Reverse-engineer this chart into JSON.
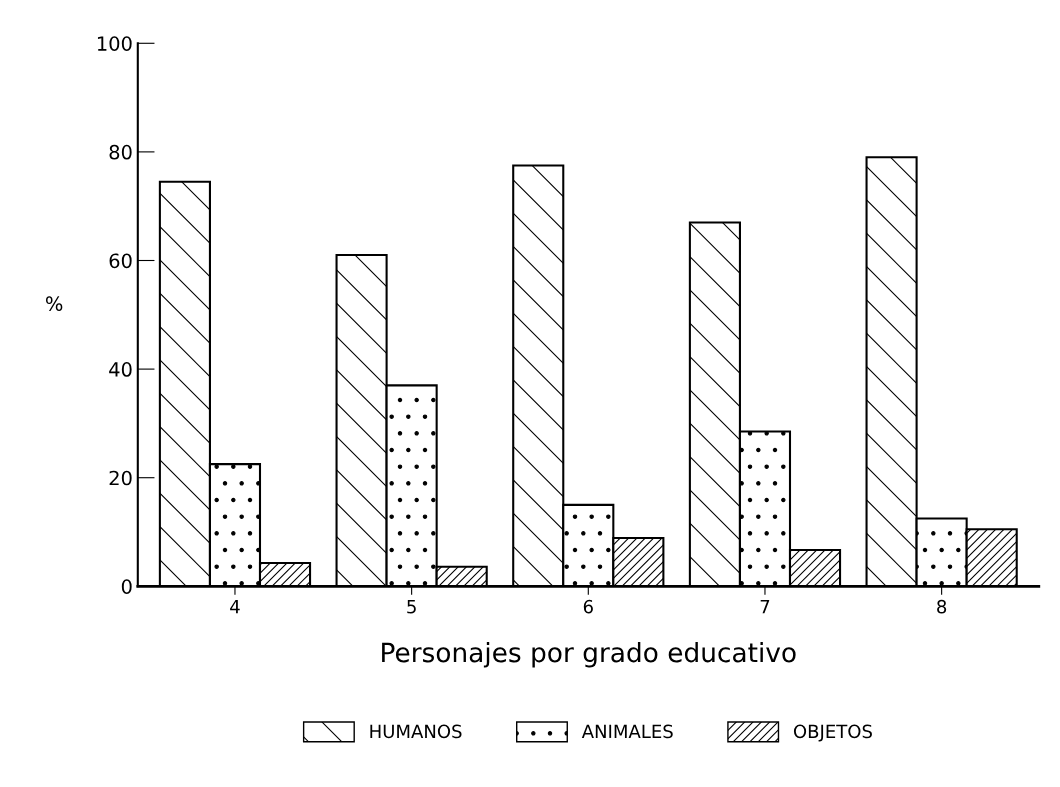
{
  "chart_data": {
    "type": "bar",
    "xlabel": "Personajes por grado educativo",
    "ylabel": "%",
    "categories": [
      "4",
      "5",
      "6",
      "7",
      "8"
    ],
    "series": [
      {
        "name": "HUMANOS",
        "color": "#000000",
        "values": [
          74.5,
          61,
          77.5,
          67,
          79
        ]
      },
      {
        "name": "ANIMALES",
        "color": "#000000",
        "values": [
          22.5,
          37,
          15,
          28.5,
          12.5
        ]
      },
      {
        "name": "OBJETOS",
        "color": "#000000",
        "values": [
          4.3,
          3.6,
          8.9,
          6.7,
          10.5
        ]
      }
    ],
    "ylim": [
      0,
      100
    ],
    "yticks": [
      0,
      20,
      40,
      60,
      80,
      100
    ],
    "grid": false,
    "legend": "bottom"
  }
}
